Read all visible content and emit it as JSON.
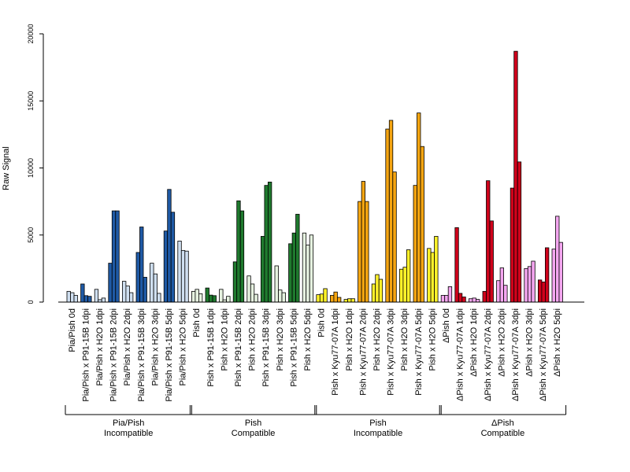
{
  "chart_data": {
    "type": "bar",
    "ylabel": "Raw Signal",
    "ylim": [
      0,
      20000
    ],
    "yticks": [
      0,
      5000,
      10000,
      15000,
      20000
    ],
    "grid": false,
    "categories": [
      "Pia/Pish 0d",
      "Pia/Pish x P91-15B 1dpi",
      "Pia/Pish x H2O 1dpi",
      "Pia/Pish x P91-15B 2dpi",
      "Pia/Pish x H2O 2dpi",
      "Pia/Pish x P91-15B 3dpi",
      "Pia/Pish x H2O 3dpi",
      "Pia/Pish x P91-15B 5dpi",
      "Pia/Pish x H2O 5dpi",
      "Pish 0d",
      "Pish x P91-15B 1dpi",
      "Pish x H2O 1dpi",
      "Pish x P91-15B 2dpi",
      "Pish x H2O 2dpi",
      "Pish x P91-15B 3dpi",
      "Pish x H2O 3dpi",
      "Pish x P91-15B 5dpi",
      "Pish x H2O 5dpi",
      "Pish 0d",
      "Pish x Kyu77-07A 1dpi",
      "Pish x H2O 1dpi",
      "Pish x Kyu77-07A 2dpi",
      "Pish x H2O 2dpi",
      "Pish x Kyu77-07A 3dpi",
      "Pish x H2O 3dpi",
      "Pish x Kyu77-07A 5dpi",
      "Pish x H2O 5dpi",
      "ΔPish 0d",
      "ΔPish x Kyu77-07A 1dpi",
      "ΔPish x H2O 1dpi",
      "ΔPish x Kyu77-07A 2dpi",
      "ΔPish x H2O 2dpi",
      "ΔPish x Kyu77-07A 3dpi",
      "ΔPish x H2O 3dpi",
      "ΔPish x Kyu77-07A 5dpi",
      "ΔPish x H2O 5dpi"
    ],
    "values": [
      [
        800,
        700,
        500
      ],
      [
        1350,
        480,
        430
      ],
      [
        950,
        180,
        300
      ],
      [
        2900,
        6800,
        6800
      ],
      [
        1550,
        1200,
        700
      ],
      [
        3700,
        5600,
        1850
      ],
      [
        2900,
        2100,
        650
      ],
      [
        5300,
        8400,
        6700
      ],
      [
        4550,
        3850,
        3800
      ],
      [
        800,
        950,
        620
      ],
      [
        1050,
        520,
        480
      ],
      [
        950,
        170,
        430
      ],
      [
        3000,
        7550,
        6800
      ],
      [
        1950,
        1350,
        580
      ],
      [
        4900,
        8700,
        8950
      ],
      [
        2700,
        900,
        700
      ],
      [
        4350,
        5150,
        6550
      ],
      [
        5150,
        4250,
        5000
      ],
      [
        550,
        600,
        1000
      ],
      [
        500,
        750,
        350
      ],
      [
        200,
        250,
        250
      ],
      [
        7500,
        9000,
        7500
      ],
      [
        1350,
        2050,
        1700
      ],
      [
        12900,
        13550,
        9700
      ],
      [
        2450,
        2600,
        3900
      ],
      [
        8700,
        14100,
        11600
      ],
      [
        4000,
        3700,
        4900
      ],
      [
        500,
        500,
        1150
      ],
      [
        5550,
        650,
        380
      ],
      [
        250,
        300,
        200
      ],
      [
        800,
        9050,
        6050
      ],
      [
        1600,
        2550,
        1250
      ],
      [
        8500,
        18700,
        10450
      ],
      [
        2500,
        2650,
        3050
      ],
      [
        1650,
        1500,
        4050
      ],
      [
        3950,
        6400,
        4450
      ]
    ],
    "colors": [
      "#cfdff0",
      "#1f5aa6",
      "#cfdff0",
      "#1f5aa6",
      "#cfdff0",
      "#1f5aa6",
      "#cfdff0",
      "#1f5aa6",
      "#cfdff0",
      "#e6f2e0",
      "#1f7a2e",
      "#e6f2e0",
      "#1f7a2e",
      "#e6f2e0",
      "#1f7a2e",
      "#e6f2e0",
      "#1f7a2e",
      "#e6f2e0",
      "#fff22a",
      "#f5a511",
      "#fff22a",
      "#f5a511",
      "#fff22a",
      "#f5a511",
      "#fff22a",
      "#f5a511",
      "#fff22a",
      "#f4a6f0",
      "#d0021b",
      "#f4a6f0",
      "#d0021b",
      "#f4a6f0",
      "#d0021b",
      "#f4a6f0",
      "#d0021b",
      "#f4a6f0"
    ],
    "groups": [
      {
        "name": "Pia/Pish",
        "subtitle": "Incompatible",
        "start": 0,
        "end": 8
      },
      {
        "name": "Pish",
        "subtitle": "Compatible",
        "start": 9,
        "end": 17
      },
      {
        "name": "Pish",
        "subtitle": "Incompatible",
        "start": 18,
        "end": 26
      },
      {
        "name": "ΔPish",
        "subtitle": "Compatible",
        "start": 27,
        "end": 35
      }
    ]
  }
}
